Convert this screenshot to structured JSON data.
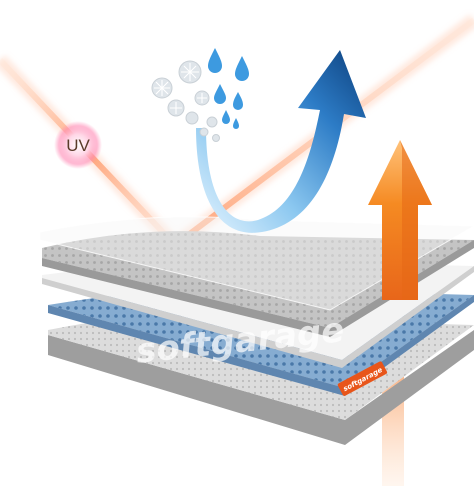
{
  "uv": {
    "label": "UV"
  },
  "watermark": {
    "main": "softgarage",
    "small": "softgarage"
  },
  "tag": {
    "label": "softgarage"
  },
  "colors": {
    "uv_ray": "#ffb08a",
    "uv_glow": "#ff7a3a",
    "blue_arrow": "#1a5fa8",
    "blue_light": "#a8d8f5",
    "orange_arrow": "#f07a1a",
    "membrane_white": "#f4f4f4",
    "fabric_grey": "#bdbdbd",
    "fabric_blue": "#7fa8cf",
    "water_drop": "#3d9ae0",
    "snowflake": "#cfd6dc"
  },
  "icons": [
    "snowflake-icon",
    "water-drop-icon",
    "uv-sun-icon"
  ]
}
